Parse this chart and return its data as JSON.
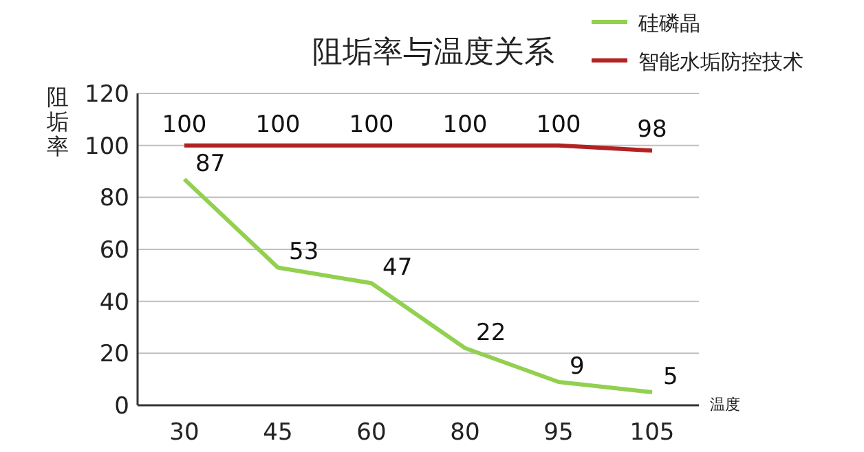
{
  "chart_data": {
    "type": "line",
    "title": "阻垢率与温度关系",
    "xlabel": "温度",
    "ylabel": "阻垢率",
    "categories": [
      "30",
      "45",
      "60",
      "80",
      "95",
      "105"
    ],
    "series": [
      {
        "name": "硅磷晶",
        "color": "#92d050",
        "values": [
          87,
          53,
          47,
          22,
          9,
          5
        ]
      },
      {
        "name": "智能水垢防控技术",
        "color": "#b22222",
        "values": [
          100,
          100,
          100,
          100,
          100,
          98
        ]
      }
    ],
    "ylim": [
      0,
      120
    ],
    "yticks": [
      0,
      20,
      40,
      60,
      80,
      100,
      120
    ],
    "grid": "y",
    "legend": "top right",
    "data_labels": true,
    "marker": "none",
    "line_style": "solid"
  }
}
